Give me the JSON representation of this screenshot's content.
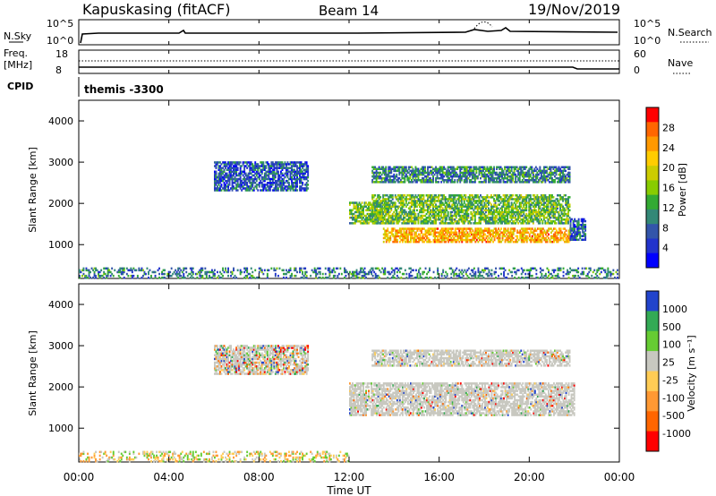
{
  "header": {
    "station": "Kapuskasing (fitACF)",
    "beam": "Beam 14",
    "date": "19/Nov/2019"
  },
  "top_panels": {
    "nsky_label": "N.Sky",
    "nsky_ticks": [
      "10^5",
      "10^0"
    ],
    "nsearch_label": "N.Search",
    "nsearch_ticks": [
      "10^5",
      "10^0"
    ],
    "freq_label": "Freq.",
    "freq_unit": "[MHz]",
    "freq_ticks": [
      "18",
      "8"
    ],
    "nave_label": "Nave",
    "nave_ticks": [
      "60",
      "0"
    ],
    "cpid_label": "CPID",
    "cpid_value": "themis -3300"
  },
  "chart_data": [
    {
      "type": "heatmap",
      "name": "power",
      "ylabel": "Slant Range [km]",
      "ylim": [
        180,
        4500
      ],
      "yticks": [
        "4000",
        "3000",
        "2000",
        "1000"
      ],
      "xlim": [
        "00:00",
        "24:00"
      ],
      "colorbar_label": "Power [dB]",
      "colorbar_ticks": [
        "28",
        "24",
        "20",
        "16",
        "12",
        "8",
        "4"
      ],
      "colorbar_colors": [
        "#ff0000",
        "#ff6600",
        "#ff9900",
        "#ffcc00",
        "#cccc00",
        "#88cc00",
        "#33aa33",
        "#338877",
        "#3355aa",
        "#2233cc",
        "#0000ff"
      ],
      "regions": [
        {
          "t": [
            6.0,
            10.2
          ],
          "r": [
            2300,
            3000
          ],
          "level": 8
        },
        {
          "t": [
            12.0,
            13.5
          ],
          "r": [
            1500,
            2000
          ],
          "level": 14
        },
        {
          "t": [
            13.0,
            21.8
          ],
          "r": [
            1500,
            2200
          ],
          "level": 14
        },
        {
          "t": [
            13.0,
            21.8
          ],
          "r": [
            2500,
            2900
          ],
          "level": 10
        },
        {
          "t": [
            13.5,
            21.8
          ],
          "r": [
            1050,
            1400
          ],
          "level": 22
        },
        {
          "t": [
            21.8,
            22.5
          ],
          "r": [
            1100,
            1600
          ],
          "level": 8
        },
        {
          "t": [
            0.0,
            24.0
          ],
          "r": [
            180,
            450
          ],
          "level": 10
        }
      ]
    },
    {
      "type": "heatmap",
      "name": "velocity",
      "ylabel": "Slant Range [km]",
      "ylim": [
        180,
        4500
      ],
      "yticks": [
        "4000",
        "3000",
        "2000",
        "1000"
      ],
      "xlim": [
        "00:00",
        "24:00"
      ],
      "xticks": [
        "00:00",
        "04:00",
        "08:00",
        "12:00",
        "16:00",
        "20:00",
        "00:00"
      ],
      "xlabel": "Time UT",
      "colorbar_label": "Velocity [m s⁻¹]",
      "colorbar_ticks": [
        "1000",
        "500",
        "100",
        "25",
        "-25",
        "-100",
        "-500",
        "-1000"
      ],
      "colorbar_colors": [
        "#2244cc",
        "#33aa55",
        "#66cc33",
        "#c8c8c0",
        "#ffcc55",
        "#ff9933",
        "#ff6600",
        "#ff0000"
      ],
      "regions": [
        {
          "t": [
            6.0,
            10.2
          ],
          "r": [
            2300,
            3000
          ],
          "level": 25
        },
        {
          "t": [
            12.0,
            22.0
          ],
          "r": [
            1300,
            2100
          ],
          "level": 0
        },
        {
          "t": [
            13.0,
            21.8
          ],
          "r": [
            2500,
            2900
          ],
          "level": 0
        },
        {
          "t": [
            0.0,
            12.0
          ],
          "r": [
            180,
            450
          ],
          "level": -100
        }
      ]
    }
  ]
}
